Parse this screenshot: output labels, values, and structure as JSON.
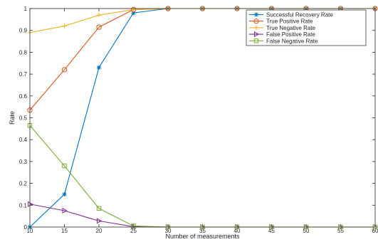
{
  "chart_data": {
    "type": "line",
    "xlabel": "Number of measurements",
    "ylabel": "Rate",
    "xlim": [
      10,
      60
    ],
    "ylim": [
      0,
      1
    ],
    "x_ticks": [
      10,
      15,
      20,
      25,
      30,
      35,
      40,
      45,
      50,
      55,
      60
    ],
    "y_ticks": [
      0,
      0.1,
      0.2,
      0.3,
      0.4,
      0.5,
      0.6,
      0.7,
      0.8,
      0.9,
      1
    ],
    "x_tick_labels": [
      "10",
      "15",
      "20",
      "25",
      "30",
      "35",
      "40",
      "45",
      "50",
      "55",
      "60"
    ],
    "y_tick_labels": [
      "0",
      "0.1",
      "0.2",
      "0.3",
      "0.4",
      "0.5",
      "0.6",
      "0.7",
      "0.8",
      "0.9",
      "1"
    ],
    "grid": false,
    "legend_position": "top-right",
    "x": [
      10,
      15,
      20,
      25,
      30,
      35,
      40,
      45,
      50,
      55,
      60
    ],
    "series": [
      {
        "name": "Successful Recovery Rate",
        "color": "#0072BD",
        "marker": "star",
        "values": [
          0.0,
          0.15,
          0.73,
          0.98,
          1.0,
          1.0,
          1.0,
          1.0,
          1.0,
          1.0,
          1.0
        ]
      },
      {
        "name": "True Positive Rate",
        "color": "#D95319",
        "marker": "circle",
        "values": [
          0.535,
          0.72,
          0.915,
          0.995,
          1.0,
          1.0,
          1.0,
          1.0,
          1.0,
          1.0,
          1.0
        ]
      },
      {
        "name": "True Negative Rate",
        "color": "#EDB120",
        "marker": "plus",
        "values": [
          0.89,
          0.92,
          0.97,
          0.995,
          1.0,
          1.0,
          1.0,
          1.0,
          1.0,
          1.0,
          1.0
        ]
      },
      {
        "name": "False Positive Rate",
        "color": "#7E2F8E",
        "marker": "triangle-right",
        "values": [
          0.105,
          0.075,
          0.028,
          0.002,
          0.0,
          0.0,
          0.0,
          0.0,
          0.0,
          0.0,
          0.0
        ]
      },
      {
        "name": "False Negative Rate",
        "color": "#77AC30",
        "marker": "square",
        "values": [
          0.465,
          0.28,
          0.085,
          0.005,
          0.0,
          0.0,
          0.0,
          0.0,
          0.0,
          0.0,
          0.0
        ]
      }
    ]
  }
}
